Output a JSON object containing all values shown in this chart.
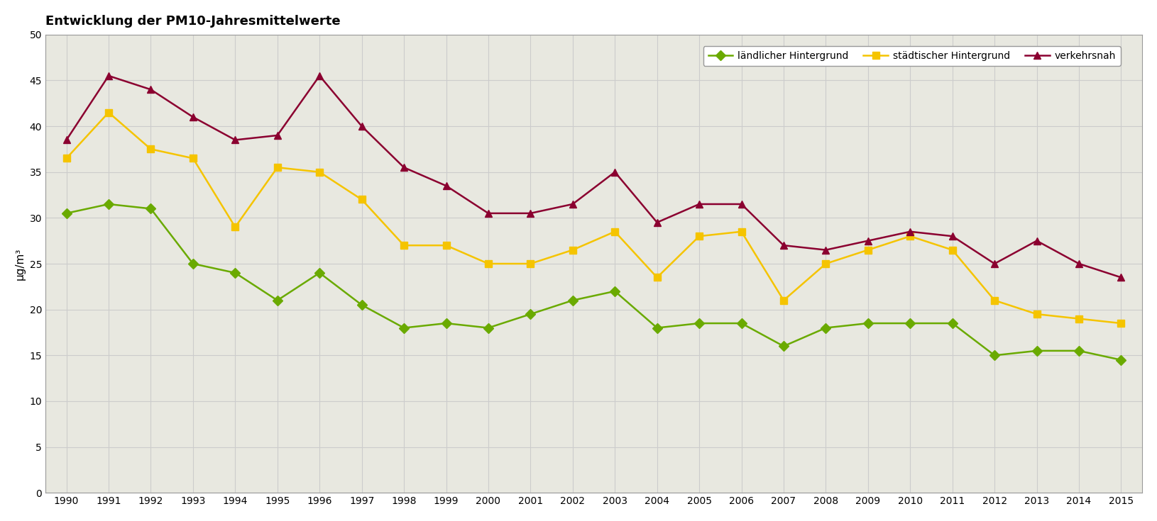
{
  "title": "Entwicklung der PM10-Jahresmittelwerte",
  "ylabel": "µg/m³",
  "years": [
    1990,
    1991,
    1992,
    1993,
    1994,
    1995,
    1996,
    1997,
    1998,
    1999,
    2000,
    2001,
    2002,
    2003,
    2004,
    2005,
    2006,
    2007,
    2008,
    2009,
    2010,
    2011,
    2012,
    2013,
    2014,
    2015
  ],
  "laendlicher": [
    30.5,
    31.5,
    31.0,
    25.0,
    24.0,
    21.0,
    24.0,
    20.5,
    18.0,
    18.5,
    18.0,
    19.5,
    21.0,
    22.0,
    18.0,
    18.5,
    18.5,
    16.0,
    18.0,
    18.5,
    18.5,
    18.5,
    15.0,
    15.5,
    15.5,
    14.5
  ],
  "staedtischer": [
    36.5,
    41.5,
    37.5,
    36.5,
    29.0,
    35.5,
    35.0,
    32.0,
    27.0,
    27.0,
    25.0,
    25.0,
    26.5,
    28.5,
    23.5,
    28.0,
    28.5,
    21.0,
    25.0,
    26.5,
    28.0,
    26.5,
    21.0,
    19.5,
    19.0,
    18.5
  ],
  "verkehrsnah": [
    38.5,
    45.5,
    44.0,
    41.0,
    38.5,
    39.0,
    45.5,
    40.0,
    35.5,
    33.5,
    30.5,
    30.5,
    31.5,
    35.0,
    29.5,
    31.5,
    31.5,
    27.0,
    26.5,
    27.5,
    28.5,
    28.0,
    25.0,
    27.5,
    25.0,
    23.5
  ],
  "color_laendlicher": "#6aaa00",
  "color_staedtischer": "#f5c400",
  "color_verkehrsnah": "#8b0030",
  "background_color": "#e8e8e0",
  "fig_background": "#ffffff",
  "ylim": [
    0,
    50
  ],
  "yticks": [
    0,
    5,
    10,
    15,
    20,
    25,
    30,
    35,
    40,
    45,
    50
  ],
  "grid_color": "#cccccc",
  "spine_color": "#999999",
  "title_fontsize": 13,
  "tick_fontsize": 10,
  "ylabel_fontsize": 11,
  "legend_fontsize": 10,
  "linewidth": 1.8,
  "markersize": 7
}
